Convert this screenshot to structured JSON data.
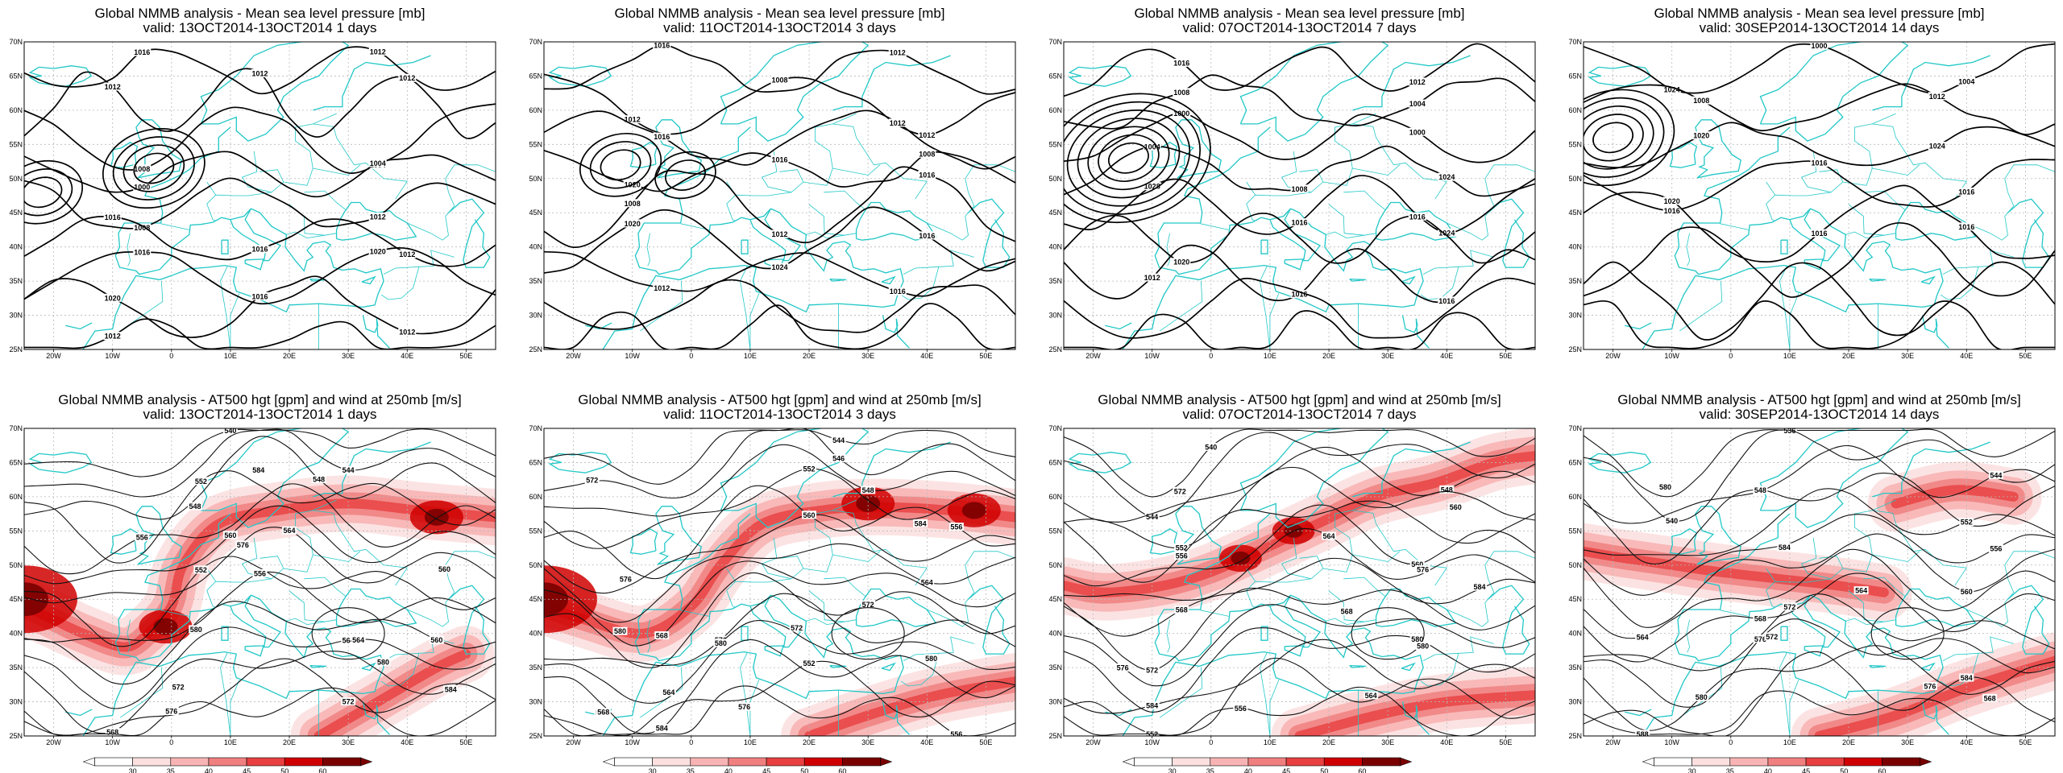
{
  "mslp_title": "Global NMMB analysis - Mean sea level pressure [mb]",
  "z500_title": "Global NMMB analysis - AT500 hgt [gpm] and wind at 250mb [m/s]",
  "panels": [
    {
      "valid": "valid: 13OCT2014-13OCT2014   1 days"
    },
    {
      "valid": "valid: 11OCT2014-13OCT2014   3 days"
    },
    {
      "valid": "valid: 07OCT2014-13OCT2014   7 days"
    },
    {
      "valid": "valid: 30SEP2014-13OCT2014  14 days"
    }
  ],
  "lon_labels": [
    "20W",
    "10W",
    "0",
    "10E",
    "20E",
    "30E",
    "40E",
    "50E"
  ],
  "lat_labels": [
    "70N",
    "65N",
    "60N",
    "55N",
    "50N",
    "45N",
    "40N",
    "35N",
    "30N",
    "25N"
  ],
  "colorbar": {
    "labels": [
      "30",
      "35",
      "40",
      "45",
      "50",
      "60"
    ],
    "colors": [
      "#ffffff",
      "#fce0e0",
      "#f8b4b4",
      "#f08080",
      "#e84040",
      "#d00000",
      "#7a0000"
    ]
  },
  "colors": {
    "coastline": "#22c7c7",
    "contour": "#000000",
    "jet": "#e00000",
    "grid": "#b8b8b8"
  },
  "mslp_labels": [
    [
      "1016",
      "1012",
      "1012",
      "1012",
      "1012",
      "1008",
      "1004",
      "1000",
      "1004",
      "1008",
      "1012",
      "1016",
      "1016",
      "1012",
      "1016",
      "1020",
      "1020",
      "1016",
      "1012",
      "1012"
    ],
    [
      "1016",
      "1012",
      "1012",
      "1008",
      "1012",
      "1016",
      "1012",
      "1020",
      "1016",
      "1008",
      "1008",
      "1012",
      "1016",
      "1020",
      "1024",
      "1016",
      "1012",
      "1016"
    ],
    [
      "1016",
      "1012",
      "1008",
      "1004",
      "1000",
      "1000",
      "1004",
      "1008",
      "1024",
      "1028",
      "1016",
      "1024",
      "1020",
      "1016",
      "1012",
      "1016",
      "1016"
    ],
    [
      "1024",
      "1000",
      "1004",
      "1008",
      "1012",
      "1020",
      "1024",
      "1016",
      "1016",
      "1016",
      "1020",
      "1016",
      "1016"
    ]
  ],
  "z500_labels": [
    [
      "540",
      "544",
      "548",
      "552",
      "556",
      "560",
      "564",
      "552",
      "556",
      "560",
      "564",
      "568",
      "572",
      "576",
      "580",
      "584",
      "572",
      "576",
      "580",
      "584",
      "548",
      "560",
      "564"
    ],
    [
      "544",
      "546",
      "548",
      "552",
      "556",
      "560",
      "564",
      "568",
      "572",
      "576",
      "580",
      "584",
      "552",
      "556",
      "560",
      "564",
      "568",
      "572",
      "576",
      "580",
      "584",
      "572",
      "576",
      "580"
    ],
    [
      "540",
      "544",
      "548",
      "552",
      "556",
      "560",
      "564",
      "568",
      "572",
      "576",
      "580",
      "584",
      "552",
      "556",
      "560",
      "564",
      "568",
      "572",
      "576",
      "580",
      "584"
    ],
    [
      "536",
      "540",
      "544",
      "548",
      "552",
      "556",
      "560",
      "564",
      "568",
      "572",
      "576",
      "580",
      "584",
      "588",
      "564",
      "568",
      "572",
      "576",
      "580",
      "584"
    ]
  ]
}
